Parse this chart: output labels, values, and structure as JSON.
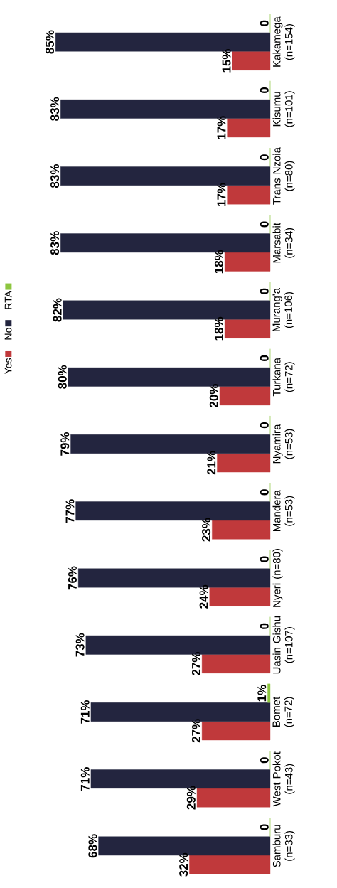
{
  "chart_data": {
    "type": "bar",
    "orientation": "horizontal",
    "categories": [
      "Kakamega (n=154)",
      "Kisumu (n=101)",
      "Trans Nzoia (n=80)",
      "Marsabit (n=34)",
      "Murang'a (n=106)",
      "Turkana (n=72)",
      "Nyamira (n=53)",
      "Mandera (n=53)",
      "Nyeri (n=80)",
      "Uasin Gishu (n=107)",
      "Bomet (n=72)",
      "West Pokot (n=43)",
      "Samburu (n=33)"
    ],
    "series": [
      {
        "name": "Yes",
        "color": "#c0393b",
        "values": [
          15,
          17,
          17,
          18,
          18,
          20,
          21,
          23,
          24,
          27,
          27,
          29,
          32
        ],
        "value_labels": [
          "15%",
          "17%",
          "17%",
          "18%",
          "18%",
          "20%",
          "21%",
          "23%",
          "24%",
          "27%",
          "27%",
          "29%",
          "32%"
        ]
      },
      {
        "name": "No",
        "color": "#23253f",
        "values": [
          85,
          83,
          83,
          83,
          82,
          80,
          79,
          77,
          76,
          73,
          71,
          71,
          68
        ],
        "value_labels": [
          "85%",
          "83%",
          "83%",
          "83%",
          "82%",
          "80%",
          "79%",
          "77%",
          "76%",
          "73%",
          "71%",
          "71%",
          "68%"
        ]
      },
      {
        "name": "RTA",
        "color": "#8dc63f",
        "values": [
          0,
          0,
          0,
          0,
          0,
          0,
          0,
          0,
          0,
          0,
          1,
          0,
          0
        ],
        "value_labels": [
          "0",
          "0",
          "0",
          "0",
          "0",
          "0",
          "0",
          "0",
          "0",
          "0",
          "1%",
          "0",
          "0"
        ]
      }
    ],
    "legend": "left"
  }
}
